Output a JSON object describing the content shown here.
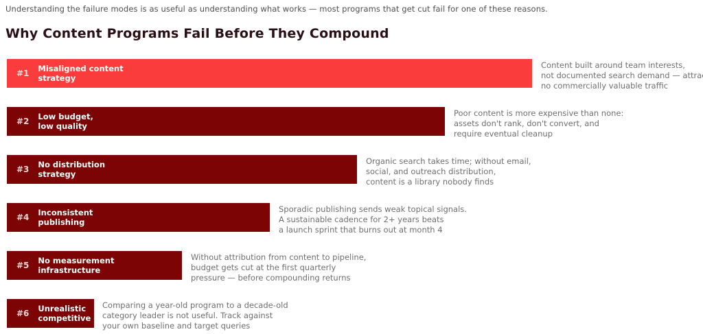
{
  "page": {
    "subtitle": "Understanding the failure modes is as useful as understanding what works — most programs that get cut fail for one of these reasons.",
    "title": "Why Content Programs Fail Before They Compound"
  },
  "colors": {
    "highlight_bar": "#fb3c3c",
    "default_bar": "#7d0404",
    "bar_text": "#ffffff",
    "description_text": "#6f6f6f",
    "title_text": "#2a1016",
    "subtitle_text": "#4f4f4f",
    "background": "#ffffff"
  },
  "bars": [
    {
      "num": "#1",
      "label": "Misaligned content\nstrategy",
      "description": "Content built around team interests,\nnot documented search demand — attracts\nno commercially valuable traffic"
    },
    {
      "num": "#2",
      "label": "Low budget,\nlow quality",
      "description": "Poor content is more expensive than none:\nassets don't rank, don't convert, and\nrequire eventual cleanup"
    },
    {
      "num": "#3",
      "label": "No distribution\nstrategy",
      "description": "Organic search takes time; without email,\nsocial, and outreach distribution,\ncontent is a library nobody finds"
    },
    {
      "num": "#4",
      "label": "Inconsistent\npublishing",
      "description": "Sporadic publishing sends weak topical signals.\nA sustainable cadence for 2+ years beats\na launch sprint that burns out at month 4"
    },
    {
      "num": "#5",
      "label": "No measurement\ninfrastructure",
      "description": "Without attribution from content to pipeline,\nbudget gets cut at the first quarterly\npressure — before compounding returns"
    },
    {
      "num": "#6",
      "label": "Unrealistic\ncompetitive expectations",
      "description": "Comparing a year-old program to a decade-old\ncategory leader is not useful. Track against\nyour own baseline and target queries"
    }
  ],
  "chart_data": {
    "type": "bar",
    "orientation": "horizontal",
    "title": "Why Content Programs Fail Before They Compound",
    "subtitle": "Understanding the failure modes is as useful as understanding what works — most programs that get cut fail for one of these reasons.",
    "categories": [
      "Misaligned content strategy",
      "Low budget, low quality",
      "No distribution strategy",
      "Inconsistent publishing",
      "No measurement infrastructure",
      "Unrealistic competitive expectations"
    ],
    "values": [
      6,
      5,
      4,
      3,
      2,
      1
    ],
    "value_meaning": "relative bar length (rank countdown, no numeric axis shown)",
    "rank_labels": [
      "#1",
      "#2",
      "#3",
      "#4",
      "#5",
      "#6"
    ],
    "annotations": [
      "Content built around team interests, not documented search demand — attracts no commercially valuable traffic",
      "Poor content is more expensive than none: assets don't rank, don't convert, and require eventual cleanup",
      "Organic search takes time; without email, social, and outreach distribution, content is a library nobody finds",
      "Sporadic publishing sends weak topical signals. A sustainable cadence for 2+ years beats a launch sprint that burns out at month 4",
      "Without attribution from content to pipeline, budget gets cut at the first quarterly pressure — before compounding returns",
      "Comparing a year-old program to a decade-old category leader is not useful. Track against your own baseline and target queries"
    ],
    "bar_colors": [
      "#fb3c3c",
      "#7d0404",
      "#7d0404",
      "#7d0404",
      "#7d0404",
      "#7d0404"
    ],
    "xlabel": "",
    "ylabel": "",
    "grid": false,
    "legend": false,
    "axis_ticks_visible": false
  }
}
